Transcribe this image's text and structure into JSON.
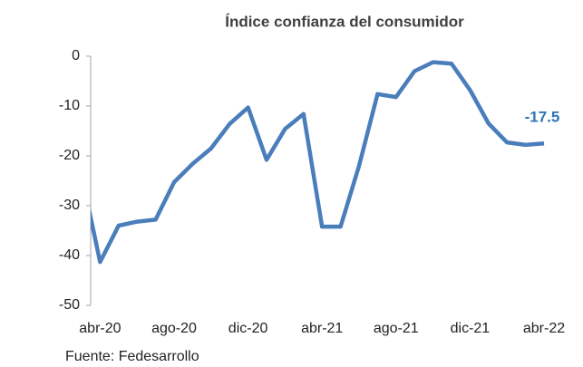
{
  "chart_data": {
    "type": "line",
    "title": "Índice confianza del consumidor",
    "categories": [
      null,
      "abr-20",
      null,
      null,
      null,
      "ago-20",
      null,
      null,
      null,
      "dic-20",
      null,
      null,
      null,
      "abr-21",
      null,
      null,
      null,
      "ago-21",
      null,
      null,
      null,
      "dic-21",
      null,
      null,
      null,
      "abr-22"
    ],
    "series": [
      {
        "name": "Índice confianza del consumidor",
        "color": "#4a7ebb",
        "values": [
          -23.8,
          -41.3,
          -34,
          -33.2,
          -32.8,
          -25.3,
          -21.6,
          -18.5,
          -13.6,
          -10.3,
          -20.8,
          -14.6,
          -11.6,
          -34.2,
          -34.2,
          -22,
          -7.6,
          -8.2,
          -3,
          -1.2,
          -1.5,
          -6.8,
          -13.5,
          -17.3,
          -17.8,
          -17.5
        ]
      }
    ],
    "annotation": {
      "text": "-17.5",
      "color": "#2e75b6"
    },
    "ylim": [
      -50,
      0
    ],
    "yticks": [
      0,
      -10,
      -20,
      -30,
      -40,
      -50
    ],
    "grid": false,
    "source": "Fuente: Fedesarrollo"
  }
}
